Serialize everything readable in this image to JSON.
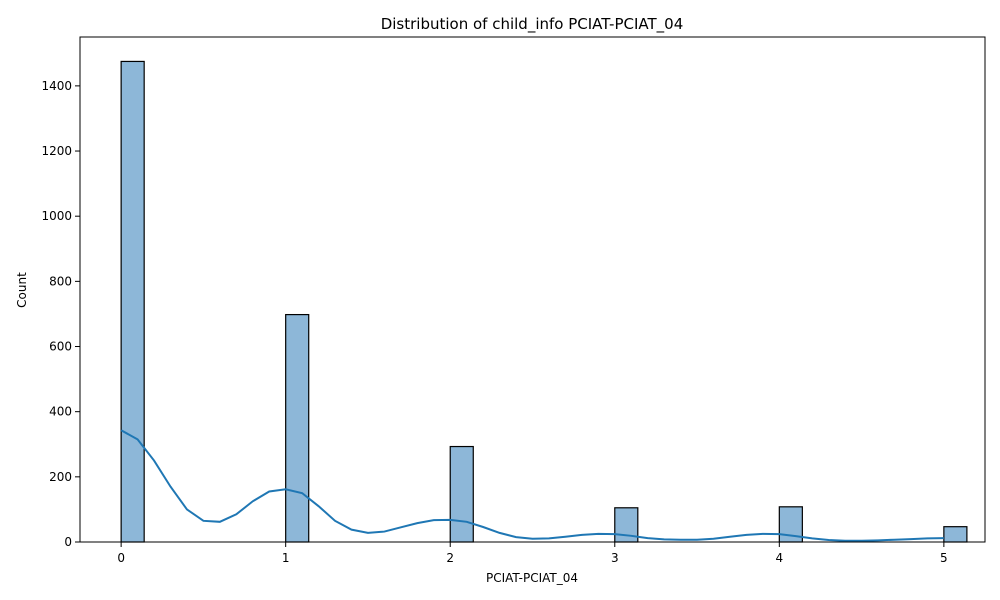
{
  "chart_data": {
    "type": "bar",
    "title": "Distribution of child_info PCIAT-PCIAT_04",
    "xlabel": "PCIAT-PCIAT_04",
    "ylabel": "Count",
    "x_ticks": [
      "0",
      "1",
      "2",
      "3",
      "4",
      "5"
    ],
    "y_ticks": [
      "0",
      "200",
      "400",
      "600",
      "800",
      "1000",
      "1200",
      "1400"
    ],
    "xlim": [
      -0.25,
      5.25
    ],
    "ylim": [
      0,
      1550
    ],
    "bin_width": 0.14,
    "bars": [
      {
        "x": 0,
        "value": 1475
      },
      {
        "x": 1,
        "value": 698
      },
      {
        "x": 2,
        "value": 293
      },
      {
        "x": 3,
        "value": 105
      },
      {
        "x": 4,
        "value": 108
      },
      {
        "x": 5,
        "value": 47
      }
    ],
    "kde": {
      "x": [
        0,
        0.1,
        0.2,
        0.3,
        0.4,
        0.5,
        0.6,
        0.7,
        0.8,
        0.9,
        1.0,
        1.1,
        1.2,
        1.3,
        1.4,
        1.5,
        1.6,
        1.7,
        1.8,
        1.9,
        2.0,
        2.1,
        2.2,
        2.3,
        2.4,
        2.5,
        2.6,
        2.7,
        2.8,
        2.9,
        3.0,
        3.1,
        3.2,
        3.3,
        3.4,
        3.5,
        3.6,
        3.7,
        3.8,
        3.9,
        4.0,
        4.1,
        4.2,
        4.3,
        4.4,
        4.5,
        4.6,
        4.7,
        4.8,
        4.9,
        5.0
      ],
      "y": [
        343,
        315,
        250,
        170,
        100,
        65,
        62,
        85,
        125,
        155,
        162,
        150,
        110,
        65,
        38,
        28,
        32,
        45,
        58,
        67,
        68,
        62,
        46,
        28,
        15,
        10,
        11,
        16,
        22,
        25,
        24,
        19,
        12,
        8,
        7,
        7,
        10,
        16,
        22,
        25,
        24,
        18,
        11,
        6,
        4,
        4,
        5,
        7,
        9,
        11,
        12
      ]
    },
    "colors": {
      "bar_fill": "#8db7d8",
      "bar_edge": "#000000",
      "kde_line": "#1f77b4"
    },
    "grid": false,
    "legend": "none"
  }
}
